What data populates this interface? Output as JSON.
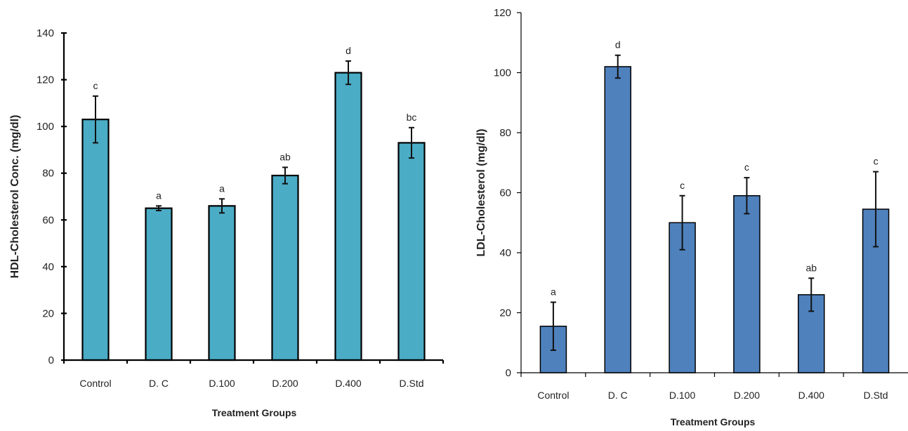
{
  "chart_data": [
    {
      "type": "bar",
      "title": "",
      "xlabel": "Treatment Groups",
      "ylabel": "HDL-Cholesterol Conc. (mg/dl)",
      "ylim": [
        0,
        140
      ],
      "yticks": [
        0,
        20,
        40,
        60,
        80,
        100,
        120,
        140
      ],
      "categories": [
        "Control",
        "D. C",
        "D.100",
        "D.200",
        "D.400",
        "D.Std"
      ],
      "values": [
        103,
        65,
        66,
        79,
        123,
        93
      ],
      "errors": [
        10,
        1,
        3,
        3.5,
        5,
        6.5
      ],
      "significance": [
        "c",
        "a",
        "a",
        "ab",
        "d",
        "bc"
      ],
      "bar_color": "#4bacc6",
      "grid": false,
      "legend": "none"
    },
    {
      "type": "bar",
      "title": "",
      "xlabel": "Treatment Groups",
      "ylabel": "LDL-Cholesterol  (mg/dl)",
      "ylim": [
        0,
        120
      ],
      "yticks": [
        0,
        20,
        40,
        60,
        80,
        100,
        120
      ],
      "categories": [
        "Control",
        "D. C",
        "D.100",
        "D.200",
        "D.400",
        "D.Std"
      ],
      "values": [
        15.5,
        102,
        50,
        59,
        26,
        54.5
      ],
      "errors": [
        8,
        3.8,
        9,
        6,
        5.5,
        12.5
      ],
      "significance": [
        "a",
        "d",
        "c",
        "c",
        "ab",
        "c"
      ],
      "bar_color": "#4f81bd",
      "grid": false,
      "legend": "none"
    }
  ]
}
